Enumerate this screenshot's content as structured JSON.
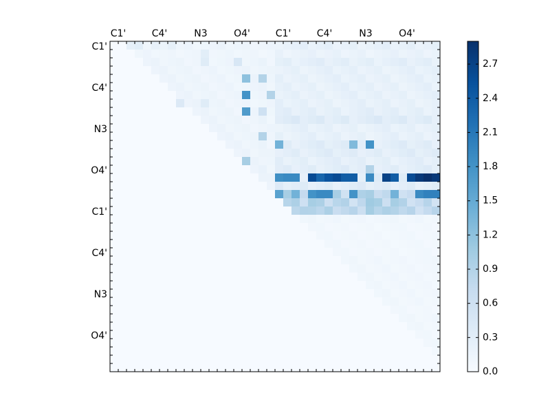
{
  "chart_data": {
    "type": "heatmap",
    "title": "",
    "xlabel": "",
    "ylabel": "",
    "n_rows": 40,
    "n_cols": 40,
    "x_tick_labels": [
      "C1'",
      "C4'",
      "N3",
      "O4'",
      "C1'",
      "C4'",
      "N3",
      "O4'"
    ],
    "x_tick_positions": [
      0.5,
      5.5,
      10.5,
      15.5,
      20.5,
      25.5,
      30.5,
      35.5
    ],
    "x_axis_side": "top",
    "y_tick_labels": [
      "C1'",
      "C4'",
      "N3",
      "O4'",
      "C1'",
      "C4'",
      "N3",
      "O4'"
    ],
    "y_tick_positions": [
      0.5,
      5.5,
      10.5,
      15.5,
      20.5,
      25.5,
      30.5,
      35.5
    ],
    "colormap": "Blues",
    "colormap_stops": [
      "#f7fbff",
      "#deebf7",
      "#c6dbef",
      "#9ecae1",
      "#6baed6",
      "#4292c6",
      "#2171b5",
      "#08519c",
      "#08306b"
    ],
    "vmin": 0.0,
    "vmax": 2.9,
    "colorbar_ticks": [
      "0.0",
      "0.3",
      "0.6",
      "0.9",
      "1.2",
      "1.5",
      "1.8",
      "2.1",
      "2.4",
      "2.7"
    ],
    "colorbar_tick_values": [
      0.0,
      0.3,
      0.6,
      0.9,
      1.2,
      1.5,
      1.8,
      2.1,
      2.4,
      2.7
    ],
    "row_profile": [
      0.3,
      0.25,
      0.35,
      0.3,
      0.3,
      0.3,
      0.3,
      0.3,
      0.35,
      0.45,
      0.3,
      0.3,
      0.4,
      0.4,
      0.35,
      0.4,
      0.4,
      0.4,
      2.25,
      1.3,
      1.8,
      0.12,
      0.1,
      0.1,
      0.1,
      0.1,
      0.12,
      0.12,
      0.12,
      0.12,
      0.12,
      0.12,
      0.1,
      0.12,
      0.12,
      0.1,
      0.1,
      0.08,
      0.05,
      0.05
    ],
    "col_profile": [
      0.3,
      0.35,
      0.3,
      0.3,
      0.3,
      0.3,
      0.3,
      0.3,
      0.3,
      0.3,
      0.3,
      0.3,
      0.3,
      0.3,
      0.3,
      0.3,
      0.3,
      0.3,
      0.35,
      0.3,
      1.0,
      1.05,
      1.0,
      0.95,
      1.4,
      1.05,
      1.05,
      1.15,
      1.05,
      1.0,
      1.15,
      1.5,
      1.05,
      1.0,
      1.4,
      1.0,
      0.95,
      0.95,
      1.0,
      1.0
    ],
    "cells": [
      {
        "r": 0,
        "c": 2,
        "v": 0.25
      },
      {
        "r": 0,
        "c": 3,
        "v": 0.3
      },
      {
        "r": 0,
        "c": 5,
        "v": 0.22
      },
      {
        "r": 0,
        "c": 7,
        "v": 0.25
      },
      {
        "r": 1,
        "c": 4,
        "v": 0.15
      },
      {
        "r": 1,
        "c": 11,
        "v": 0.3
      },
      {
        "r": 2,
        "c": 11,
        "v": 0.35
      },
      {
        "r": 2,
        "c": 15,
        "v": 0.45
      },
      {
        "r": 4,
        "c": 16,
        "v": 1.2
      },
      {
        "r": 4,
        "c": 18,
        "v": 0.9
      },
      {
        "r": 6,
        "c": 16,
        "v": 1.8
      },
      {
        "r": 6,
        "c": 19,
        "v": 0.9
      },
      {
        "r": 7,
        "c": 8,
        "v": 0.4
      },
      {
        "r": 7,
        "c": 11,
        "v": 0.35
      },
      {
        "r": 8,
        "c": 16,
        "v": 1.7
      },
      {
        "r": 8,
        "c": 18,
        "v": 0.6
      },
      {
        "r": 11,
        "c": 18,
        "v": 0.9
      },
      {
        "r": 12,
        "c": 20,
        "v": 1.4
      },
      {
        "r": 12,
        "c": 29,
        "v": 1.3
      },
      {
        "r": 12,
        "c": 31,
        "v": 1.8
      },
      {
        "r": 14,
        "c": 16,
        "v": 1.0
      },
      {
        "r": 15,
        "c": 31,
        "v": 0.9
      },
      {
        "r": 16,
        "c": 20,
        "v": 1.85
      },
      {
        "r": 16,
        "c": 21,
        "v": 1.9
      },
      {
        "r": 16,
        "c": 22,
        "v": 1.9
      },
      {
        "r": 16,
        "c": 24,
        "v": 2.6
      },
      {
        "r": 16,
        "c": 25,
        "v": 2.3
      },
      {
        "r": 16,
        "c": 26,
        "v": 2.5
      },
      {
        "r": 16,
        "c": 27,
        "v": 2.6
      },
      {
        "r": 16,
        "c": 28,
        "v": 2.4
      },
      {
        "r": 16,
        "c": 29,
        "v": 2.4
      },
      {
        "r": 16,
        "c": 31,
        "v": 1.9
      },
      {
        "r": 16,
        "c": 33,
        "v": 2.7
      },
      {
        "r": 16,
        "c": 34,
        "v": 2.4
      },
      {
        "r": 16,
        "c": 36,
        "v": 2.6
      },
      {
        "r": 16,
        "c": 37,
        "v": 2.8
      },
      {
        "r": 16,
        "c": 38,
        "v": 2.9
      },
      {
        "r": 16,
        "c": 39,
        "v": 2.8
      },
      {
        "r": 18,
        "c": 20,
        "v": 1.6
      },
      {
        "r": 18,
        "c": 22,
        "v": 1.4
      },
      {
        "r": 18,
        "c": 24,
        "v": 1.8
      },
      {
        "r": 18,
        "c": 25,
        "v": 1.9
      },
      {
        "r": 18,
        "c": 26,
        "v": 1.9
      },
      {
        "r": 18,
        "c": 29,
        "v": 1.8
      },
      {
        "r": 18,
        "c": 31,
        "v": 1.0
      },
      {
        "r": 18,
        "c": 34,
        "v": 1.4
      },
      {
        "r": 18,
        "c": 37,
        "v": 1.9
      },
      {
        "r": 18,
        "c": 38,
        "v": 2.0
      },
      {
        "r": 18,
        "c": 39,
        "v": 2.0
      }
    ]
  }
}
